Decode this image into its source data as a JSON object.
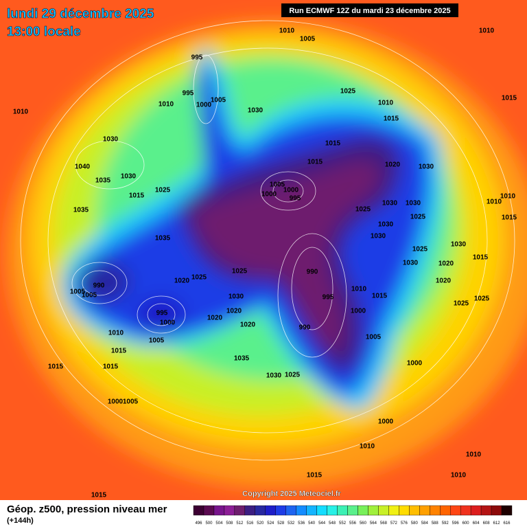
{
  "header": {
    "date": "lundi 29 décembre 2025",
    "time": "13:00 locale",
    "run": "Run ECMWF 12Z du mardi 23 décembre 2025"
  },
  "copyright": "Copyright 2025 Meteociel.fr",
  "footer": {
    "title": "Géop. z500, pression niveau mer",
    "subtitle": "(+144h)"
  },
  "legend": {
    "values": [
      496,
      500,
      504,
      508,
      512,
      516,
      520,
      524,
      528,
      532,
      536,
      540,
      544,
      548,
      552,
      556,
      560,
      564,
      568,
      572,
      576,
      580,
      584,
      588,
      592,
      596,
      600,
      604,
      608,
      612,
      616
    ],
    "colors": [
      "#3c0032",
      "#5a0a50",
      "#78148c",
      "#8c1e96",
      "#6e1e6e",
      "#3c1e82",
      "#2828a0",
      "#1e1ec8",
      "#1e3ce6",
      "#1e64f0",
      "#148cff",
      "#14b4ff",
      "#14dcff",
      "#28f0e6",
      "#3cf0b4",
      "#5af08c",
      "#78f05a",
      "#a0f03c",
      "#c8f028",
      "#f0f014",
      "#ffdc00",
      "#ffbe00",
      "#ffa000",
      "#ff8200",
      "#ff6400",
      "#ff4614",
      "#f0321e",
      "#dc1e1e",
      "#b41414",
      "#8c0a0a",
      "#1e0000"
    ]
  },
  "isobar_labels": [
    "1010",
    "1005",
    "1010",
    "995",
    "995",
    "1000",
    "1005",
    "1010",
    "1030",
    "1025",
    "1010",
    "1015",
    "1010",
    "1015",
    "1030",
    "1015",
    "1015",
    "1020",
    "1030",
    "1040",
    "1030",
    "1035",
    "1005",
    "1000",
    "995",
    "1000",
    "1025",
    "1015",
    "1030",
    "1030",
    "1025",
    "1035",
    "1010",
    "1010",
    "1015",
    "1030",
    "1030",
    "1025",
    "1035",
    "1025",
    "1030",
    "1015",
    "1030",
    "1020",
    "1025",
    "1025",
    "1020",
    "990",
    "990",
    "1005",
    "1005",
    "1010",
    "1015",
    "995",
    "1030",
    "1020",
    "1020",
    "1025",
    "1025",
    "995",
    "1000",
    "1000",
    "1020",
    "1020",
    "990",
    "1010",
    "1005",
    "1005",
    "1015",
    "1035",
    "1000",
    "1015",
    "1015",
    "1030",
    "1025",
    "1000",
    "1005",
    "1000",
    "1010",
    "1010",
    "1010",
    "1015",
    "1015"
  ]
}
